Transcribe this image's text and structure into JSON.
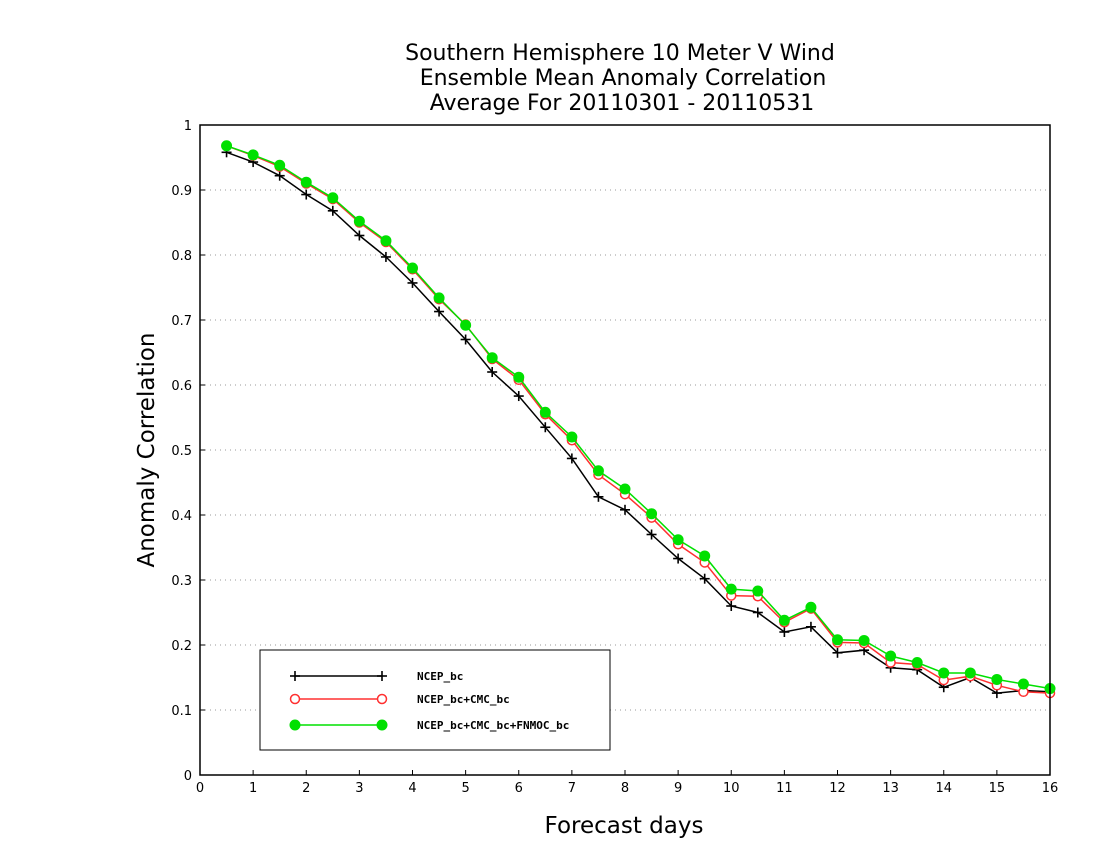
{
  "chart_data": {
    "type": "line",
    "title": [
      "Southern Hemisphere 10 Meter V Wind",
      "Ensemble Mean Anomaly Correlation",
      "Average For 20110301 - 20110531"
    ],
    "xlabel": "Forecast days",
    "ylabel": "Anomaly Correlation",
    "xlim": [
      0,
      16
    ],
    "ylim": [
      0,
      1
    ],
    "xticks": [
      "0",
      "1",
      "2",
      "3",
      "4",
      "5",
      "6",
      "7",
      "8",
      "9",
      "10",
      "11",
      "12",
      "13",
      "14",
      "15",
      "16"
    ],
    "yticks": [
      "0",
      "0.1",
      "0.2",
      "0.3",
      "0.4",
      "0.5",
      "0.6",
      "0.7",
      "0.8",
      "0.9",
      "1"
    ],
    "grid": "dotted horizontal",
    "legend_position": "bottom-left",
    "x": [
      0.5,
      1,
      1.5,
      2,
      2.5,
      3,
      3.5,
      4,
      4.5,
      5,
      5.5,
      6,
      6.5,
      7,
      7.5,
      8,
      8.5,
      9,
      9.5,
      10,
      10.5,
      11,
      11.5,
      12,
      12.5,
      13,
      13.5,
      14,
      14.5,
      15,
      15.5,
      16
    ],
    "series": [
      {
        "name": "NCEP_bc",
        "color": "#000000",
        "marker": "plus",
        "values": [
          0.958,
          0.943,
          0.922,
          0.893,
          0.868,
          0.83,
          0.797,
          0.757,
          0.713,
          0.67,
          0.62,
          0.583,
          0.535,
          0.487,
          0.428,
          0.408,
          0.37,
          0.333,
          0.302,
          0.26,
          0.25,
          0.22,
          0.228,
          0.188,
          0.192,
          0.165,
          0.162,
          0.135,
          0.15,
          0.126,
          0.13,
          0.128
        ]
      },
      {
        "name": "NCEP_bc+CMC_bc",
        "color": "#ff3030",
        "marker": "open-circle",
        "values": [
          0.968,
          0.953,
          0.936,
          0.91,
          0.886,
          0.85,
          0.82,
          0.778,
          0.732,
          0.693,
          0.64,
          0.608,
          0.555,
          0.515,
          0.462,
          0.432,
          0.396,
          0.355,
          0.327,
          0.276,
          0.275,
          0.235,
          0.256,
          0.204,
          0.203,
          0.173,
          0.17,
          0.146,
          0.152,
          0.138,
          0.128,
          0.126
        ]
      },
      {
        "name": "NCEP_bc+CMC_bc+FNMOC_bc",
        "color": "#00e000",
        "marker": "filled-circle",
        "values": [
          0.968,
          0.954,
          0.938,
          0.912,
          0.888,
          0.852,
          0.822,
          0.78,
          0.734,
          0.692,
          0.642,
          0.612,
          0.558,
          0.52,
          0.468,
          0.44,
          0.402,
          0.362,
          0.337,
          0.286,
          0.283,
          0.238,
          0.258,
          0.208,
          0.207,
          0.183,
          0.173,
          0.157,
          0.157,
          0.147,
          0.14,
          0.133
        ]
      }
    ]
  }
}
